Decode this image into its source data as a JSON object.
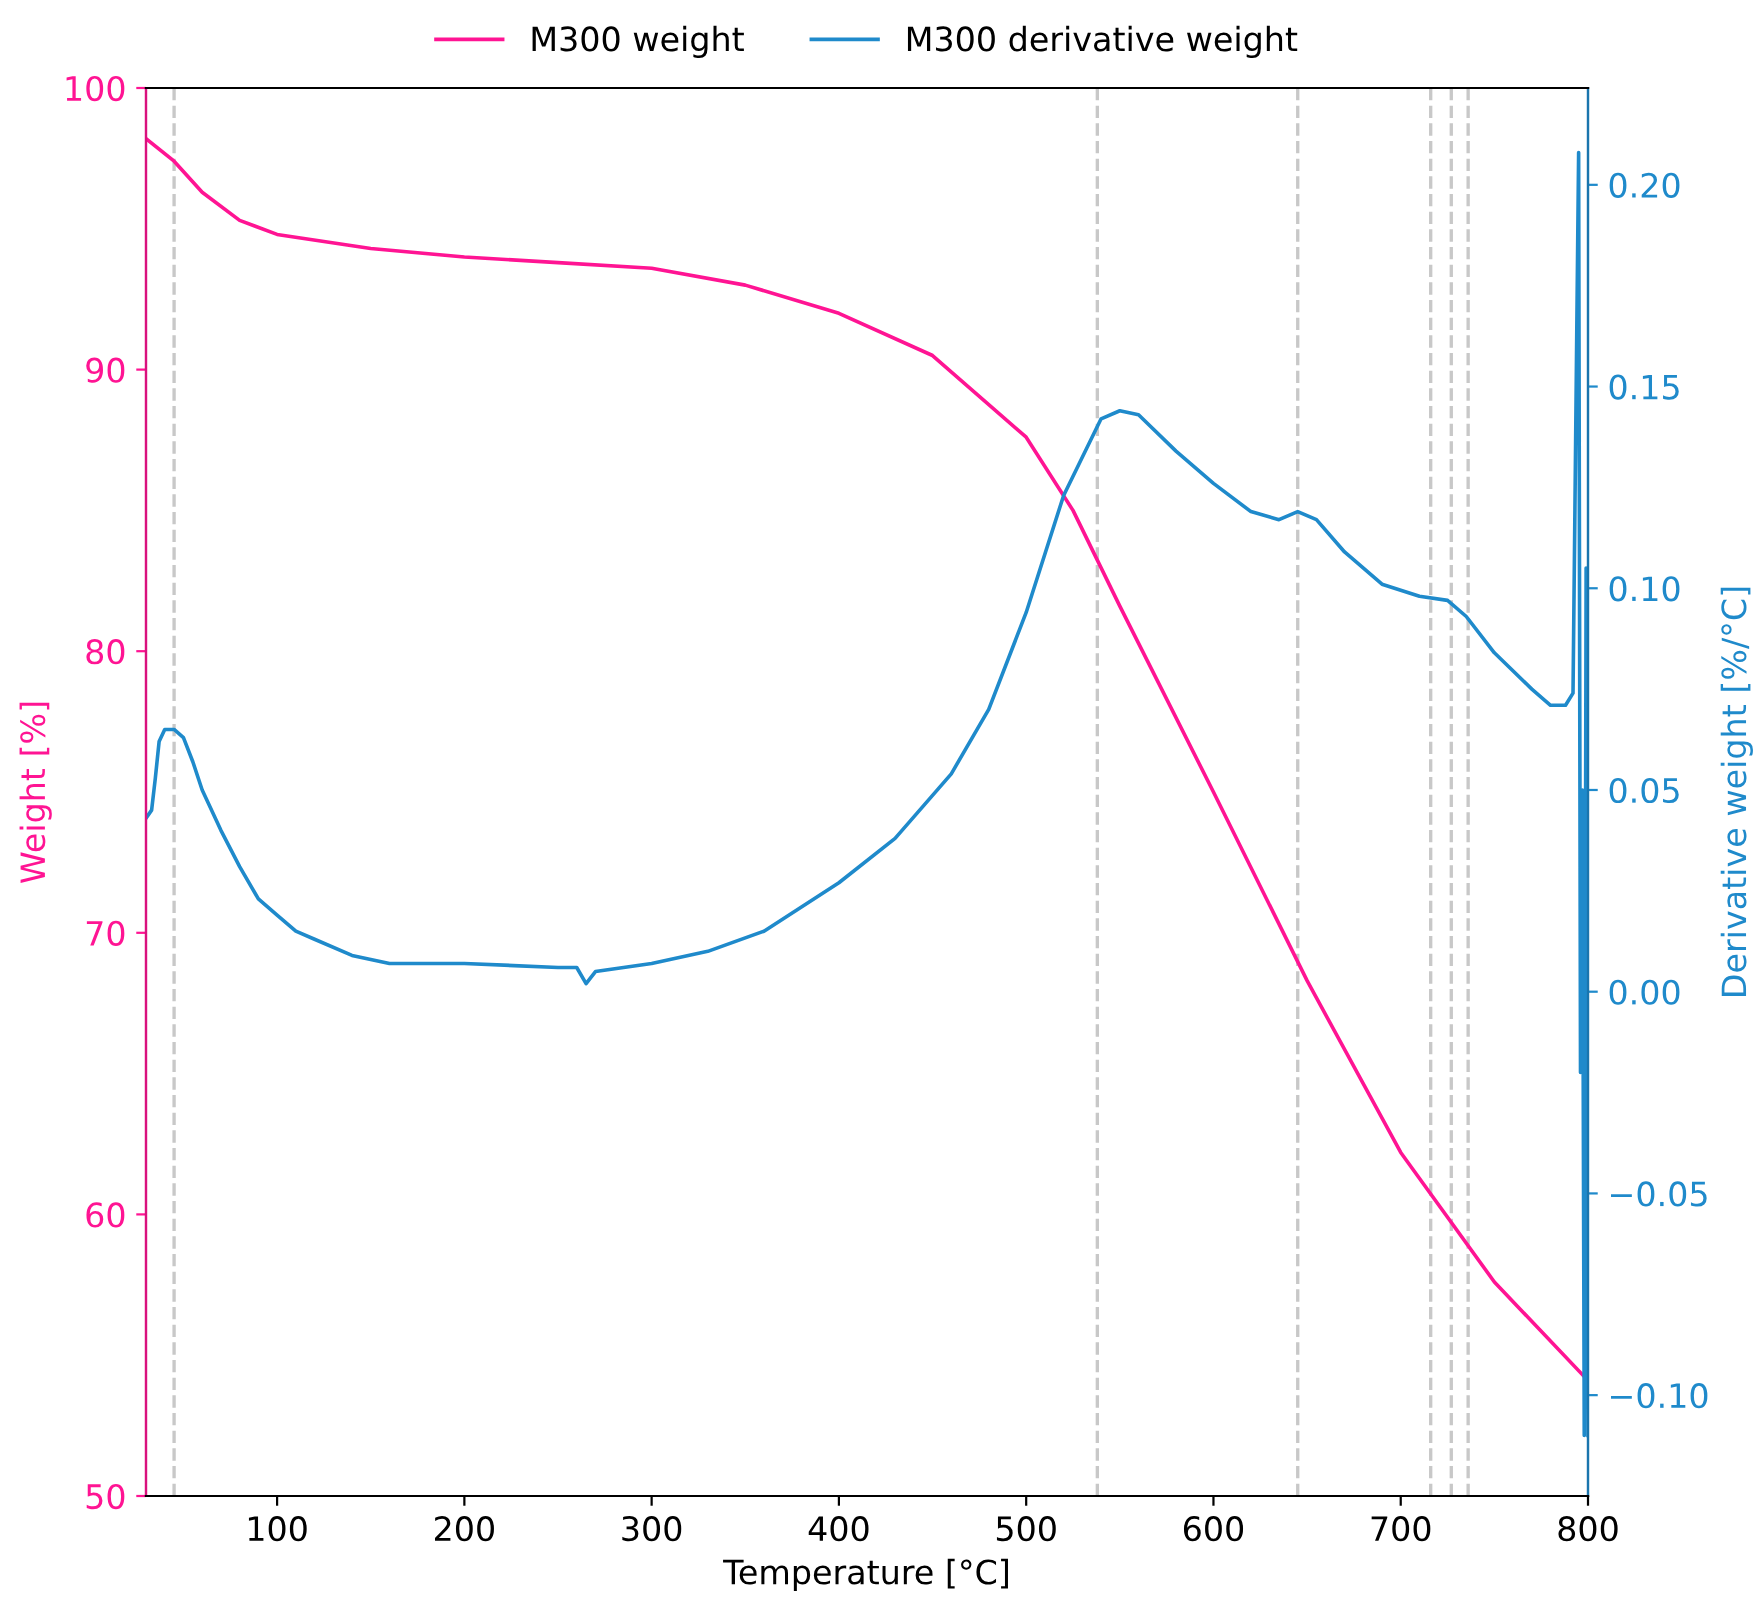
{
  "chart_data": {
    "type": "line",
    "xlabel": "Temperature [°C]",
    "ylabel": "Weight [%]",
    "y2label": "Derivative weight [%/°C]",
    "xlim": [
      30,
      800
    ],
    "xticks": [
      100,
      200,
      300,
      400,
      500,
      600,
      700,
      800
    ],
    "ylim": [
      50,
      100
    ],
    "yticks": [
      50,
      60,
      70,
      80,
      90,
      100
    ],
    "y2lim": [
      -0.125,
      0.224
    ],
    "y2ticks": [
      {
        "value": -0.1,
        "label": "−0.10"
      },
      {
        "value": -0.05,
        "label": "−0.05"
      },
      {
        "value": 0,
        "label": "0.00"
      },
      {
        "value": 0.05,
        "label": "0.05"
      },
      {
        "value": 0.1,
        "label": "0.10"
      },
      {
        "value": 0.15,
        "label": "0.15"
      },
      {
        "value": 0.2,
        "label": "0.20"
      }
    ],
    "legend": "top",
    "grid": false,
    "ref_lines": [
      {
        "axis": "x",
        "value": 45,
        "color": "#c8c8c8",
        "line_style": "dashed"
      },
      {
        "axis": "x",
        "value": 538,
        "color": "#c8c8c8",
        "line_style": "dashed"
      },
      {
        "axis": "x",
        "value": 645,
        "color": "#c8c8c8",
        "line_style": "dashed"
      },
      {
        "axis": "x",
        "value": 716,
        "color": "#c8c8c8",
        "line_style": "dashed"
      },
      {
        "axis": "x",
        "value": 727,
        "color": "#c8c8c8",
        "line_style": "dashed"
      },
      {
        "axis": "x",
        "value": 736,
        "color": "#c8c8c8",
        "line_style": "dashed"
      }
    ],
    "series": [
      {
        "name": "M300 weight",
        "color": "#ff1493",
        "x": [
          30,
          45,
          60,
          80,
          100,
          150,
          200,
          250,
          300,
          350,
          400,
          450,
          500,
          525,
          550,
          600,
          650,
          700,
          750,
          800
        ],
        "values": [
          98.2,
          97.4,
          96.3,
          95.3,
          94.8,
          94.3,
          94.0,
          93.8,
          93.6,
          93.0,
          92.0,
          90.5,
          87.6,
          85.0,
          81.6,
          75.0,
          68.3,
          62.2,
          57.6,
          54.1
        ]
      },
      {
        "name": "M300 derivative weight",
        "color": "#1f8acb",
        "axis": "y2",
        "x": [
          30,
          33,
          35,
          37,
          40,
          45,
          50,
          55,
          60,
          70,
          80,
          90,
          100,
          110,
          120,
          140,
          160,
          200,
          250,
          260,
          265,
          270,
          300,
          330,
          360,
          400,
          430,
          460,
          480,
          500,
          520,
          540,
          550,
          560,
          580,
          600,
          620,
          635,
          645,
          655,
          670,
          690,
          710,
          725,
          735,
          750,
          770,
          780,
          788,
          792,
          795,
          796,
          797,
          798,
          799,
          800
        ],
        "values": [
          0.043,
          0.045,
          0.053,
          0.062,
          0.065,
          0.065,
          0.063,
          0.057,
          0.05,
          0.04,
          0.031,
          0.023,
          0.019,
          0.015,
          0.013,
          0.009,
          0.007,
          0.007,
          0.006,
          0.006,
          0.002,
          0.005,
          0.007,
          0.01,
          0.015,
          0.027,
          0.038,
          0.054,
          0.07,
          0.094,
          0.123,
          0.142,
          0.144,
          0.143,
          0.134,
          0.126,
          0.119,
          0.117,
          0.119,
          0.117,
          0.109,
          0.101,
          0.098,
          0.097,
          0.093,
          0.084,
          0.075,
          0.071,
          0.071,
          0.074,
          0.208,
          -0.02,
          0.05,
          -0.11,
          0.105,
          -0.11
        ]
      }
    ]
  }
}
